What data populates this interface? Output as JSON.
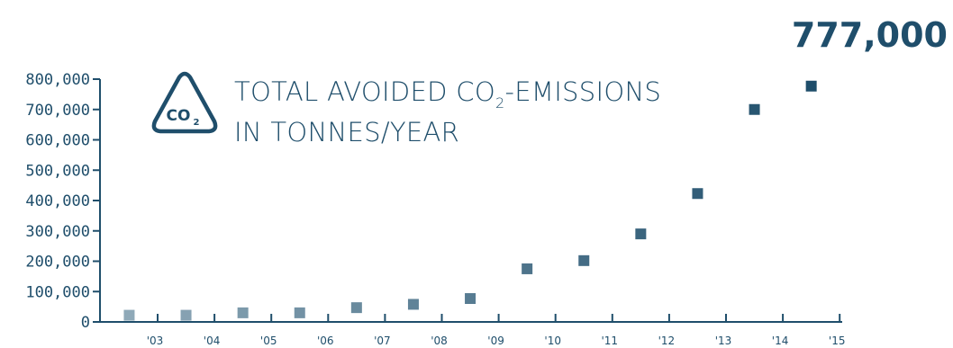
{
  "headline_value": "777,000",
  "badge": {
    "icon": "co2-triangle-icon",
    "text_main": "CO",
    "text_sub": "2"
  },
  "chart_data": {
    "type": "scatter",
    "title": {
      "line1_a": "TOTAL AVOIDED CO",
      "line1_sub": "2",
      "line1_b": "-EMISSIONS",
      "line2": "IN TONNES/YEAR"
    },
    "categories": [
      "'03",
      "'04",
      "'05",
      "'06",
      "'07",
      "'08",
      "'09",
      "'10",
      "'11",
      "'12",
      "'13",
      "'14",
      "'15"
    ],
    "values": [
      22000,
      22000,
      30000,
      30000,
      47000,
      58000,
      77000,
      175000,
      202000,
      290000,
      423000,
      700000,
      777000
    ],
    "ylim": [
      0,
      800000
    ],
    "yticks": [
      0,
      100000,
      200000,
      300000,
      400000,
      500000,
      600000,
      700000,
      800000
    ],
    "ytick_labels": [
      "0",
      "100,000",
      "200,000",
      "300,000",
      "400,000",
      "500,000",
      "600,000",
      "700,000",
      "800,000"
    ],
    "xlabel": "",
    "ylabel": "",
    "grid": false,
    "colors": {
      "axis": "#1f4e6b",
      "marker_start": "#8fa9b8",
      "marker_end": "#1f4e6b"
    }
  }
}
